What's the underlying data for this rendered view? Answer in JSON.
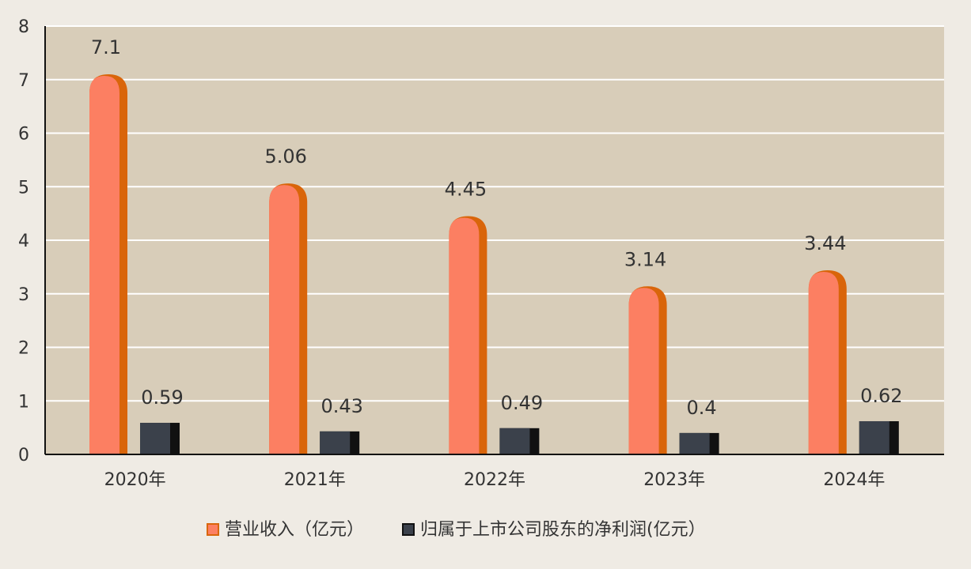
{
  "chart_data": {
    "type": "bar",
    "categories": [
      "2020年",
      "2021年",
      "2022年",
      "2023年",
      "2024年"
    ],
    "series": [
      {
        "name": "营业收入（亿元）",
        "values": [
          7.1,
          5.06,
          4.45,
          3.14,
          3.44
        ],
        "labels": [
          "7.1",
          "5.06",
          "4.45",
          "3.14",
          "3.44"
        ],
        "color": "#fc7f62",
        "side_color": "#d9650a"
      },
      {
        "name": "归属于上市公司股东的净利润(亿元）",
        "values": [
          0.59,
          0.43,
          0.49,
          0.4,
          0.62
        ],
        "labels": [
          "0.59",
          "0.43",
          "0.49",
          "0.4",
          "0.62"
        ],
        "color": "#3b414b",
        "side_color": "#111111"
      }
    ],
    "yticks": [
      "0",
      "1",
      "2",
      "3",
      "4",
      "5",
      "6",
      "7",
      "8"
    ],
    "ylim": [
      0,
      8
    ],
    "grid": true,
    "legend_position": "bottom-center",
    "plot_background": "#d8cdb9",
    "page_background": "#efebe4"
  }
}
